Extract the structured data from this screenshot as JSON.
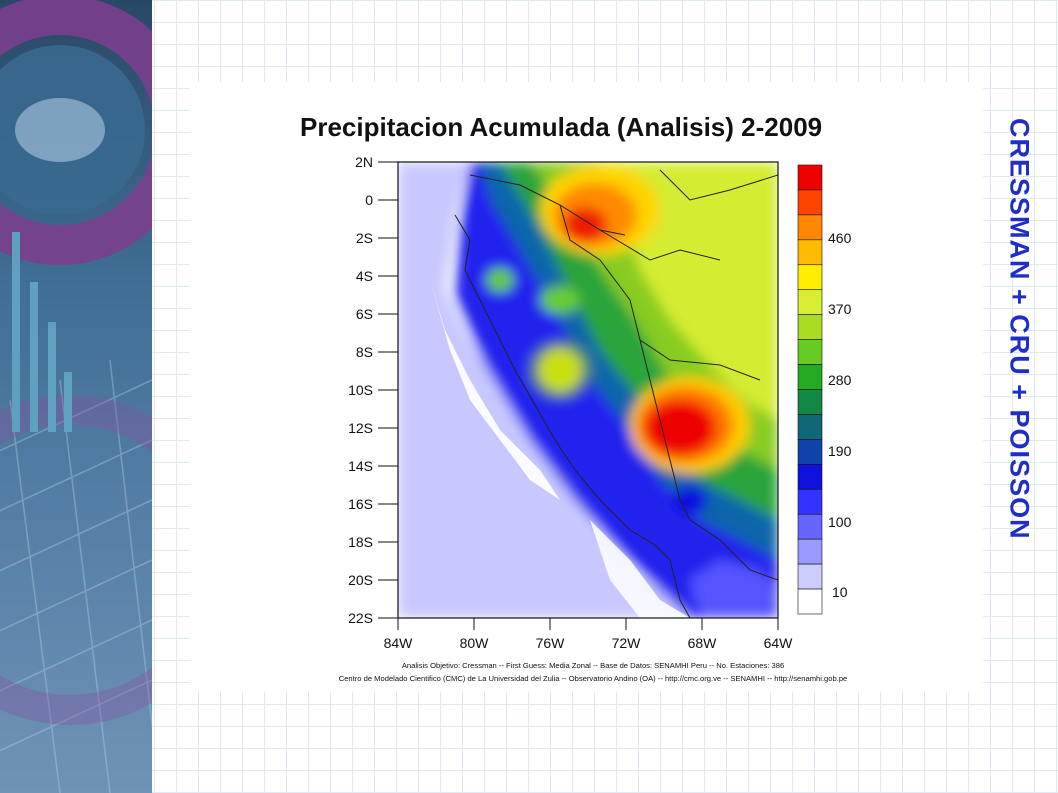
{
  "slide": {
    "title": "Precipitacion Acumulada (Analisis)  2-2009",
    "side_title": "CRESSMAN + CRU + POISSON",
    "footer_line1": "Analisis Objetivo: Cressman  --  First Guess: Media Zonal -- Base de Datos: SENAMHI Peru -- No. Estaciones: 386",
    "footer_line2": "Centro de Modelado Cientifico (CMC) de La Universidad del Zulia -- Observatorio Andino (OA) -- http://cmc.org.ve -- SENAMHI -- http://senamhi.gob.pe"
  },
  "map": {
    "lat_labels": [
      "2N",
      "0",
      "2S",
      "4S",
      "6S",
      "8S",
      "10S",
      "12S",
      "14S",
      "16S",
      "18S",
      "20S",
      "22S"
    ],
    "lon_labels": [
      "84W",
      "80W",
      "76W",
      "72W",
      "68W",
      "64W"
    ],
    "colorbar": {
      "labels": [
        "460",
        "370",
        "280",
        "190",
        "100",
        "10"
      ],
      "colors": [
        "#ee0000",
        "#ff4400",
        "#ff8800",
        "#ffbb00",
        "#ffee00",
        "#d8ee33",
        "#aadd22",
        "#66cc22",
        "#22aa22",
        "#118844",
        "#116677",
        "#1144aa",
        "#1111dd",
        "#3333ff",
        "#6666ff",
        "#9999ff",
        "#ccccff",
        "#ffffff"
      ]
    }
  }
}
